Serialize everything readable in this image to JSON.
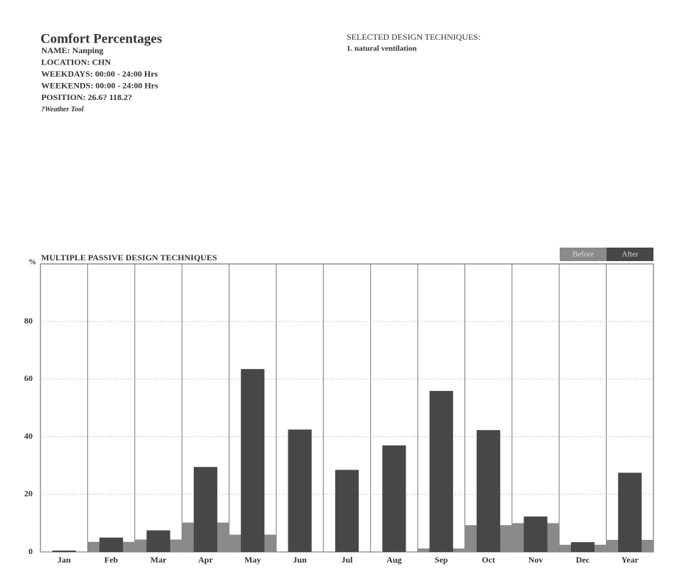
{
  "header": {
    "title": "Comfort Percentages",
    "lines": [
      "NAME: Nanping",
      "LOCATION: CHN",
      "WEEKDAYS: 00:00 - 24:00 Hrs",
      "WEEKENDS: 00:00 - 24:00 Hrs",
      "POSITION: 26.6? 118.2?",
      "?Weather Tool"
    ]
  },
  "techniques": {
    "title": "SELECTED DESIGN TECHNIQUES:",
    "items": [
      "1. natural ventilation"
    ]
  },
  "chart_data": {
    "type": "bar",
    "title": "MULTIPLE PASSIVE DESIGN TECHNIQUES",
    "y_label": "%",
    "categories": [
      "Jan",
      "Feb",
      "Mar",
      "Apr",
      "May",
      "Jun",
      "Jul",
      "Aug",
      "Sep",
      "Oct",
      "Nov",
      "Dec",
      "Year"
    ],
    "series": [
      {
        "name": "Before",
        "color": "#8a8a8a",
        "values": [
          0,
          3.5,
          4.3,
          10.2,
          6,
          0,
          0,
          0,
          1.2,
          9.3,
          10,
          2.5,
          4.2
        ]
      },
      {
        "name": "After",
        "color": "#474747",
        "values": [
          0.5,
          5,
          7.5,
          29.5,
          63.5,
          42.5,
          28.5,
          37,
          55.9,
          42.3,
          12.3,
          3.4,
          27.5
        ]
      }
    ],
    "ylim": [
      0,
      100
    ],
    "yticks": [
      0,
      20,
      40,
      60,
      80
    ],
    "grid": true
  }
}
